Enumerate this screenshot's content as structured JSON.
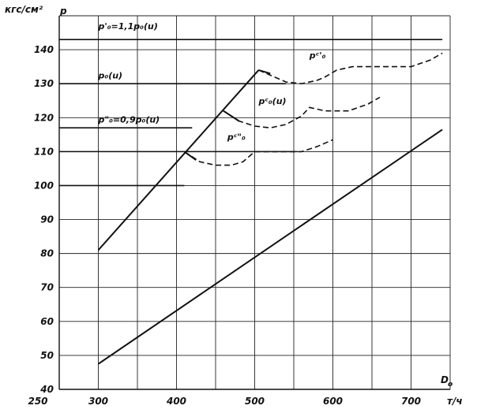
{
  "chart_data": {
    "type": "line",
    "ylabel_unit": "кгс/см²",
    "ylabel": "p",
    "xlabel": "D",
    "xlabel_sub": "o",
    "xlabel_unit": "т/ч",
    "xlim": [
      250,
      750
    ],
    "ylim": [
      40,
      150
    ],
    "grid": true,
    "x_ticks": [
      250,
      300,
      400,
      500,
      600,
      700
    ],
    "y_ticks": [
      40,
      50,
      60,
      70,
      80,
      90,
      100,
      110,
      120,
      130,
      140
    ],
    "series": [
      {
        "style": "solid",
        "points": [
          [
            300,
            81
          ],
          [
            505,
            134
          ]
        ]
      },
      {
        "style": "solid",
        "points": [
          [
            300,
            47.5
          ],
          [
            740,
            116.5
          ]
        ]
      },
      {
        "style": "dashed",
        "points": [
          [
            505,
            134
          ],
          [
            520,
            132.5
          ],
          [
            540,
            130.5
          ],
          [
            560,
            130
          ],
          [
            580,
            131
          ],
          [
            590,
            132
          ],
          [
            605,
            134
          ],
          [
            625,
            135
          ],
          [
            660,
            135
          ],
          [
            690,
            135
          ],
          [
            700,
            135
          ],
          [
            725,
            137
          ],
          [
            740,
            139
          ]
        ]
      },
      {
        "style": "dashed",
        "points": [
          [
            460,
            122
          ],
          [
            480,
            119
          ],
          [
            500,
            117.5
          ],
          [
            520,
            117
          ],
          [
            540,
            118
          ],
          [
            560,
            120.5
          ],
          [
            570,
            123
          ],
          [
            590,
            122
          ],
          [
            620,
            122
          ],
          [
            645,
            124
          ],
          [
            660,
            126
          ]
        ]
      },
      {
        "style": "dashed",
        "points": [
          [
            410,
            110
          ],
          [
            430,
            107
          ],
          [
            450,
            106
          ],
          [
            470,
            106
          ],
          [
            485,
            107
          ],
          [
            500,
            110
          ],
          [
            520,
            110
          ],
          [
            545,
            110
          ],
          [
            560,
            110
          ],
          [
            580,
            111.5
          ],
          [
            600,
            113.5
          ]
        ]
      },
      {
        "style": "solid",
        "points": [
          [
            505,
            134
          ],
          [
            520,
            133
          ]
        ]
      },
      {
        "style": "solid",
        "points": [
          [
            460,
            122
          ],
          [
            480,
            119
          ]
        ]
      },
      {
        "style": "solid",
        "points": [
          [
            410,
            110
          ],
          [
            425,
            107.5
          ]
        ]
      }
    ],
    "reference_lines": [
      {
        "y": 143,
        "x_from": 250,
        "x_to": 740
      },
      {
        "y": 130,
        "x_from": 250,
        "x_to": 540
      },
      {
        "y": 117,
        "x_from": 250,
        "x_to": 420
      },
      {
        "y": 110,
        "x_from": 250,
        "x_to": 555
      },
      {
        "y": 100,
        "x_from": 250,
        "x_to": 410
      }
    ],
    "annotations": [
      {
        "text": "p'₀=1,1p₀(u)",
        "x": 300,
        "y": 146
      },
      {
        "text": "p₀(u)",
        "x": 300,
        "y": 131.5
      },
      {
        "text": "p\"₀=0,9p₀(u)",
        "x": 300,
        "y": 118.5
      },
      {
        "text": "pᶜ'₀",
        "x": 570,
        "y": 137.5
      },
      {
        "text": "pᶜ₀(u)",
        "x": 505,
        "y": 124
      },
      {
        "text": "pᶜ\"₀",
        "x": 465,
        "y": 113.5
      }
    ]
  }
}
